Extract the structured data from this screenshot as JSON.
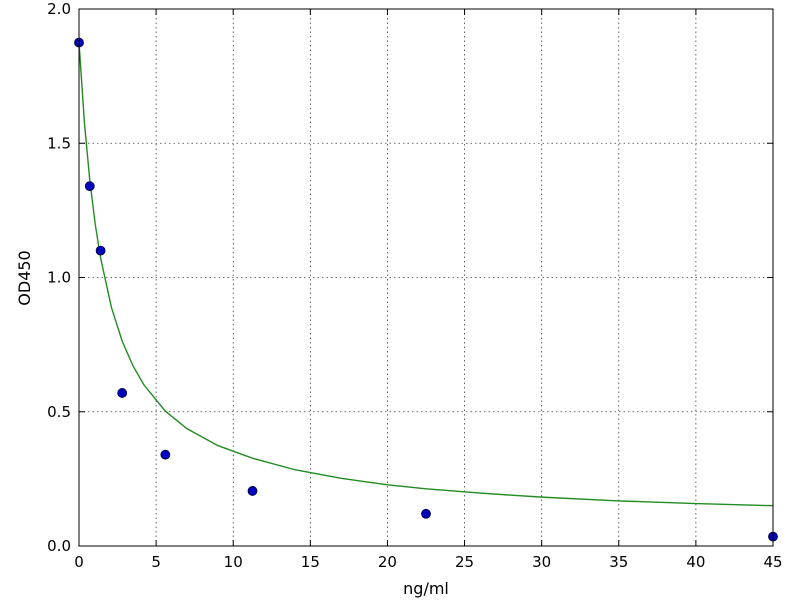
{
  "chart_data": {
    "type": "scatter",
    "title": "",
    "xlabel": "ng/ml",
    "ylabel": "OD450",
    "xlim": [
      0,
      45
    ],
    "ylim": [
      0,
      2.0
    ],
    "xticks": [
      0,
      5,
      10,
      15,
      20,
      25,
      30,
      35,
      40,
      45
    ],
    "xtick_labels": [
      "0",
      "5",
      "10",
      "15",
      "20",
      "25",
      "30",
      "35",
      "40",
      "45"
    ],
    "yticks": [
      0,
      0.5,
      1.0,
      1.5,
      2.0
    ],
    "ytick_labels": [
      "0.0",
      "0.5",
      "1.0",
      "1.5",
      "2.0"
    ],
    "grid": true,
    "series": [
      {
        "kind": "points",
        "color": "#0000bf",
        "x": [
          0,
          0.7,
          1.4,
          2.8,
          5.6,
          11.25,
          22.5,
          45
        ],
        "y": [
          1.875,
          1.34,
          1.1,
          0.57,
          0.34,
          0.205,
          0.12,
          0.035
        ]
      },
      {
        "kind": "fit-curve",
        "color": "#228b22",
        "x": [
          0,
          0.35,
          0.7,
          1.05,
          1.4,
          2.1,
          2.8,
          3.5,
          4.2,
          5.6,
          7,
          9,
          11.25,
          14,
          17,
          20,
          22.5,
          26,
          30,
          35,
          40,
          45
        ],
        "y": [
          1.875,
          1.577,
          1.362,
          1.199,
          1.073,
          0.889,
          0.763,
          0.671,
          0.601,
          0.502,
          0.437,
          0.374,
          0.327,
          0.284,
          0.252,
          0.228,
          0.213,
          0.197,
          0.182,
          0.168,
          0.158,
          0.15
        ]
      }
    ]
  }
}
